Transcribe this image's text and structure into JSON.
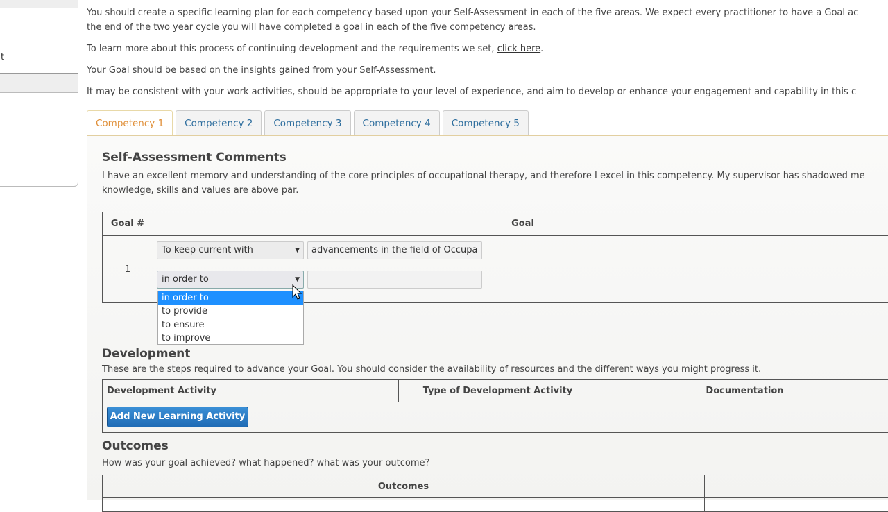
{
  "sidebar": {
    "partial_text": "t"
  },
  "intro": {
    "p1": "You should create a specific learning plan for each competency based upon your Self-Assessment in each of the five areas. We expect every practitioner to have a Goal ac",
    "p1b": "the end of the two year cycle you will have completed a goal in each of the five competency areas.",
    "p2_prefix": "To learn more about this process of continuing development and the requirements we set, ",
    "p2_link": "click here",
    "p2_suffix": ".",
    "p3": "Your Goal should be based on the insights gained from your Self-Assessment.",
    "p4": "It may be consistent with your work activities, should be appropriate to your level of experience, and aim to develop or enhance your engagement and capability in this c"
  },
  "tabs": [
    {
      "label": "Competency 1",
      "active": true
    },
    {
      "label": "Competency 2"
    },
    {
      "label": "Competency 3"
    },
    {
      "label": "Competency 4"
    },
    {
      "label": "Competency 5"
    }
  ],
  "self_assessment": {
    "title": "Self-Assessment Comments",
    "text1": "I have an excellent memory and understanding of the core principles of occupational therapy, and therefore I excel in this competency. My supervisor has shadowed me",
    "text2": "knowledge, skills and values are above par."
  },
  "goal_table": {
    "col1": "Goal #",
    "col2": "Goal",
    "row_number": "1",
    "select1": "To keep current with",
    "input1": "advancements in the field of Occupa",
    "select2": "in order to",
    "input2": "",
    "dropdown_options": [
      "in order to",
      "to provide",
      "to ensure",
      "to improve"
    ]
  },
  "development": {
    "title": "Development",
    "text": "These are the steps required to advance your Goal. You should consider the availability of resources and the different ways you might progress it.",
    "cols": [
      "Development Activity",
      "Type of Development Activity",
      "Documentation"
    ],
    "add_button": "Add New Learning Activity"
  },
  "outcomes": {
    "title": "Outcomes",
    "text": "How was your goal achieved? what happened? what was your outcome?",
    "col1": "Outcomes"
  },
  "colors": {
    "accent_tab": "#e0903a",
    "tab_text": "#2e6e9e",
    "button": "#1f6bb5",
    "highlight": "#1e90ff"
  }
}
